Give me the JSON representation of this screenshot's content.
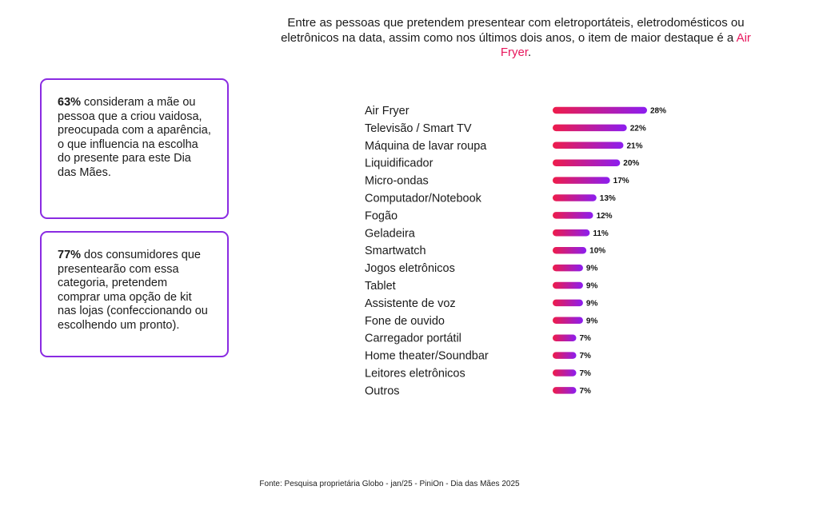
{
  "headline": {
    "text_before": "Entre as pessoas que pretendem presentear com eletroportáteis, eletrodomésticos ou eletrônicos na data, assim como nos últimos dois anos, o item de maior destaque é a ",
    "highlight": "Air Fryer",
    "text_after": "."
  },
  "cards": [
    {
      "bold": "63%",
      "text": " consideram a mãe ou pessoa que a criou vaidosa, preocupada com a aparência, o que influencia na escolha do presente para este Dia das Mães."
    },
    {
      "bold": "77%",
      "text": " dos consumidores que presentearão com essa categoria, pretendem comprar uma opção de kit nas lojas (confeccionando ou escolhendo um pronto)."
    }
  ],
  "chart_data": {
    "type": "bar",
    "orientation": "horizontal",
    "categories": [
      "Air Fryer",
      "Televisão / Smart TV",
      "Máquina de lavar roupa",
      "Liquidificador",
      "Micro-ondas",
      "Computador/Notebook",
      "Fogão",
      "Geladeira",
      "Smartwatch",
      "Jogos eletrônicos",
      "Tablet",
      "Assistente de voz",
      "Fone de ouvido",
      "Carregador portátil",
      "Home theater/Soundbar",
      "Leitores eletrônicos",
      "Outros"
    ],
    "values": [
      28,
      22,
      21,
      20,
      17,
      13,
      12,
      11,
      10,
      9,
      9,
      9,
      9,
      7,
      7,
      7,
      7
    ],
    "labels": [
      "28%",
      "22%",
      "21%",
      "20%",
      "17%",
      "13%",
      "12%",
      "11%",
      "10%",
      "9%",
      "9%",
      "9%",
      "9%",
      "7%",
      "7%",
      "7%",
      "7%"
    ],
    "xlim": [
      0,
      28
    ],
    "gradient": [
      "#ee1c4a",
      "#8c1df0"
    ]
  },
  "source": "Fonte: Pesquisa proprietária Globo - jan/25 - PiniOn - Dia das Mães 2025"
}
